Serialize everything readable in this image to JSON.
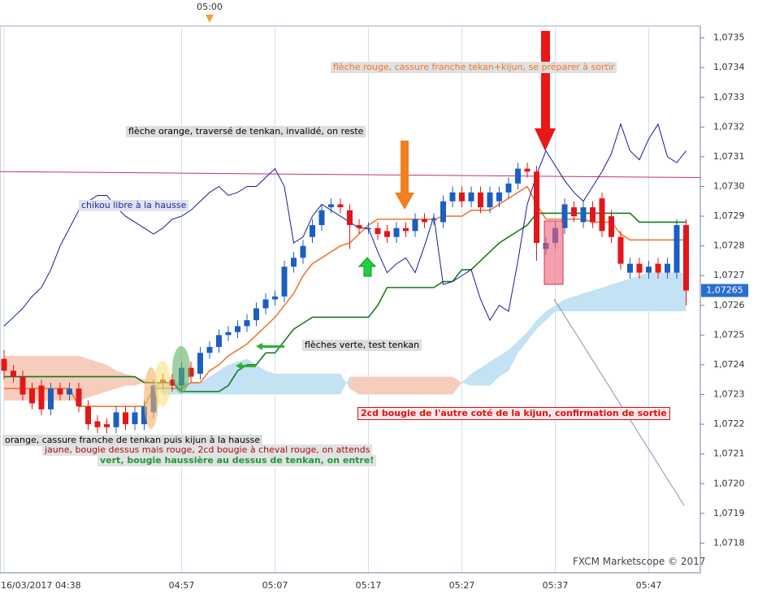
{
  "chart_data": {
    "type": "candlestick",
    "top_time_label": "05:00",
    "categories": [
      "16/03/2017 04:38",
      null,
      null,
      null,
      null,
      null,
      null,
      null,
      null,
      null,
      null,
      null,
      null,
      null,
      null,
      null,
      null,
      null,
      null,
      "04:57",
      null,
      null,
      null,
      null,
      null,
      null,
      null,
      null,
      null,
      "05:07",
      null,
      null,
      null,
      null,
      null,
      null,
      null,
      null,
      null,
      "05:17",
      null,
      null,
      null,
      null,
      null,
      null,
      null,
      null,
      null,
      "05:27",
      null,
      null,
      null,
      null,
      null,
      null,
      null,
      null,
      null,
      "05:37",
      null,
      null,
      null,
      null,
      null,
      null,
      null,
      null,
      null,
      "05:47",
      null,
      null,
      null,
      null
    ],
    "open": [
      1.07242,
      1.07238,
      1.07236,
      1.07232,
      1.07233,
      1.07225,
      1.07232,
      1.0723,
      1.07232,
      1.07226,
      1.07221,
      1.0722,
      1.07219,
      1.07224,
      1.0722,
      1.0722,
      1.07224,
      1.07235,
      1.07235,
      1.07233,
      1.07239,
      1.07237,
      1.07244,
      1.07246,
      1.0725,
      1.07251,
      1.07253,
      1.07255,
      1.07259,
      1.07262,
      1.07263,
      1.07273,
      1.07276,
      1.07283,
      1.07287,
      1.07293,
      1.07294,
      1.07292,
      1.07287,
      1.07286,
      1.07286,
      1.07285,
      1.07283,
      1.07286,
      1.07285,
      1.07289,
      1.07289,
      1.07288,
      1.07295,
      1.07298,
      1.07295,
      1.07298,
      1.07293,
      1.07295,
      1.07298,
      1.07301,
      1.07306,
      1.07305,
      1.07279,
      1.07281,
      1.07286,
      1.07293,
      1.07288,
      1.07293,
      1.07296,
      1.0729,
      1.07283,
      1.07271,
      1.07274,
      1.07271,
      1.07274,
      1.07271,
      1.07271,
      1.07287
    ],
    "high": [
      1.07245,
      1.0724,
      1.07238,
      1.07234,
      1.07235,
      1.07234,
      1.07234,
      1.07234,
      1.07234,
      1.07228,
      1.07223,
      1.07222,
      1.07226,
      1.07226,
      1.07226,
      1.07228,
      1.07235,
      1.07237,
      1.07237,
      1.07241,
      1.07241,
      1.07246,
      1.07248,
      1.07252,
      1.07253,
      1.07255,
      1.07257,
      1.07261,
      1.07264,
      1.07265,
      1.07275,
      1.07278,
      1.07282,
      1.07289,
      1.07294,
      1.07296,
      1.07296,
      1.07294,
      1.07289,
      1.07288,
      1.07288,
      1.07287,
      1.07288,
      1.07288,
      1.07291,
      1.07291,
      1.07291,
      1.07297,
      1.073,
      1.073,
      1.073,
      1.073,
      1.073,
      1.073,
      1.07303,
      1.07308,
      1.07308,
      1.07307,
      1.07283,
      1.07288,
      1.07296,
      1.07295,
      1.07295,
      1.07295,
      1.07298,
      1.07292,
      1.07285,
      1.07276,
      1.07276,
      1.07275,
      1.07276,
      1.07276,
      1.07289,
      1.07289
    ],
    "low": [
      1.07235,
      1.07234,
      1.07228,
      1.07225,
      1.07223,
      1.07223,
      1.07228,
      1.07228,
      1.07224,
      1.07218,
      1.07217,
      1.07217,
      1.07217,
      1.07218,
      1.07218,
      1.07218,
      1.07222,
      1.07232,
      1.07231,
      1.07231,
      1.07234,
      1.07235,
      1.07242,
      1.07244,
      1.07248,
      1.07249,
      1.07251,
      1.07253,
      1.07257,
      1.0726,
      1.07261,
      1.07271,
      1.07274,
      1.07281,
      1.07285,
      1.07291,
      1.07291,
      1.07279,
      1.07284,
      1.07284,
      1.07282,
      1.07281,
      1.07281,
      1.07283,
      1.07283,
      1.07286,
      1.07287,
      1.07286,
      1.07293,
      1.07293,
      1.07293,
      1.07291,
      1.07291,
      1.07293,
      1.07296,
      1.07299,
      1.07303,
      1.07275,
      1.07277,
      1.07279,
      1.07284,
      1.07288,
      1.07286,
      1.07286,
      1.07283,
      1.07281,
      1.07272,
      1.07269,
      1.07269,
      1.07269,
      1.07269,
      1.07269,
      1.07269,
      1.0726
    ],
    "close": [
      1.07238,
      1.07236,
      1.0723,
      1.07227,
      1.07225,
      1.07232,
      1.0723,
      1.07232,
      1.07226,
      1.0722,
      1.07219,
      1.07219,
      1.07224,
      1.0722,
      1.07224,
      1.07226,
      1.07233,
      1.07234,
      1.07233,
      1.07239,
      1.07236,
      1.07244,
      1.07246,
      1.0725,
      1.07251,
      1.07253,
      1.07255,
      1.07259,
      1.07262,
      1.07263,
      1.07273,
      1.07276,
      1.0728,
      1.07287,
      1.07292,
      1.07294,
      1.07293,
      1.07287,
      1.07286,
      1.07286,
      1.07284,
      1.07283,
      1.07286,
      1.07285,
      1.07289,
      1.07288,
      1.07289,
      1.07295,
      1.07298,
      1.07295,
      1.07298,
      1.07293,
      1.07298,
      1.07298,
      1.07301,
      1.07306,
      1.07305,
      1.07281,
      1.07281,
      1.07286,
      1.07294,
      1.0729,
      1.07293,
      1.07288,
      1.07285,
      1.07283,
      1.07274,
      1.07274,
      1.07271,
      1.07273,
      1.07271,
      1.07274,
      1.07287,
      1.07265
    ],
    "up_color": "#1b5fc1",
    "down_color": "#e3161c",
    "cloud": {
      "a": [
        1.07228,
        1.07228,
        1.07228,
        1.07228,
        1.07228,
        1.07228,
        1.07228,
        1.07228,
        1.07228,
        1.07229,
        1.0723,
        1.07231,
        1.07232,
        1.07233,
        1.07233,
        1.07234,
        1.07234,
        1.07234,
        1.07234,
        1.07234,
        1.07234,
        1.07234,
        1.07236,
        1.07238,
        1.0724,
        1.07241,
        1.07242,
        1.0724,
        1.07238,
        1.07237,
        1.07237,
        1.07237,
        1.07237,
        1.07237,
        1.07237,
        1.07237,
        1.07237,
        1.07232,
        1.0723,
        1.0723,
        1.0723,
        1.0723,
        1.0723,
        1.0723,
        1.0723,
        1.0723,
        1.0723,
        1.0723,
        1.0723,
        1.07234,
        1.07237,
        1.07239,
        1.07241,
        1.07243,
        1.07245,
        1.07248,
        1.07251,
        1.07255,
        1.07258,
        1.0726,
        1.07262,
        1.07263,
        1.07264,
        1.07265,
        1.07266,
        1.07267,
        1.07268,
        1.07269,
        1.0727,
        1.07271,
        1.07271,
        1.07271,
        1.07271,
        1.07271
      ],
      "b": [
        1.07243,
        1.07243,
        1.07243,
        1.07243,
        1.07243,
        1.07243,
        1.07243,
        1.07243,
        1.07243,
        1.07242,
        1.07241,
        1.0724,
        1.07238,
        1.07237,
        1.07236,
        1.07235,
        1.07234,
        1.0723,
        1.0723,
        1.0723,
        1.0723,
        1.0723,
        1.0723,
        1.0723,
        1.0723,
        1.0723,
        1.0723,
        1.0723,
        1.0723,
        1.0723,
        1.0723,
        1.0723,
        1.0723,
        1.0723,
        1.0723,
        1.0723,
        1.0723,
        1.07236,
        1.07236,
        1.07236,
        1.07236,
        1.07236,
        1.07236,
        1.07236,
        1.07236,
        1.07236,
        1.07236,
        1.07236,
        1.07236,
        1.07234,
        1.07233,
        1.07233,
        1.07233,
        1.07236,
        1.07238,
        1.07244,
        1.07248,
        1.07252,
        1.07255,
        1.07258,
        1.07258,
        1.07258,
        1.07258,
        1.07258,
        1.07258,
        1.07258,
        1.07258,
        1.07258,
        1.07258,
        1.07258,
        1.07258,
        1.07258,
        1.07258,
        1.07258
      ],
      "up_color": "#c3e2f3",
      "down_color": "#f6cdbd"
    },
    "lines": [
      {
        "color": "#f07830",
        "values": [
          1.07232,
          1.07232,
          1.07232,
          1.07232,
          1.07232,
          1.07232,
          1.07232,
          1.07232,
          1.07226,
          1.07226,
          1.07226,
          1.07226,
          1.07226,
          1.07226,
          1.07226,
          1.07226,
          1.07232,
          1.07232,
          1.07232,
          1.07232,
          1.07234,
          1.07234,
          1.07238,
          1.0724,
          1.07243,
          1.07245,
          1.07247,
          1.0725,
          1.07253,
          1.07256,
          1.0726,
          1.07264,
          1.0727,
          1.07274,
          1.07276,
          1.07278,
          1.0728,
          1.07281,
          1.07284,
          1.07287,
          1.07289,
          1.07289,
          1.07289,
          1.07289,
          1.07289,
          1.07289,
          1.07289,
          1.0729,
          1.0729,
          1.0729,
          1.07292,
          1.07292,
          1.07292,
          1.07294,
          1.07296,
          1.07298,
          1.073,
          1.07294,
          1.07289,
          1.07289,
          1.07289,
          1.07289,
          1.07289,
          1.07288,
          1.07288,
          1.07288,
          1.07284,
          1.07282,
          1.07282,
          1.07282,
          1.07282,
          1.07282,
          1.07282,
          1.07282
        ]
      },
      {
        "color": "#1a7a1a",
        "values": [
          1.07236,
          1.07236,
          1.07236,
          1.07236,
          1.07236,
          1.07236,
          1.07236,
          1.07236,
          1.07236,
          1.07236,
          1.07236,
          1.07236,
          1.07236,
          1.07236,
          1.07236,
          1.07234,
          1.07234,
          1.07234,
          1.07234,
          1.07231,
          1.07231,
          1.07231,
          1.07231,
          1.07231,
          1.07233,
          1.07238,
          1.0724,
          1.0724,
          1.07244,
          1.07244,
          1.07248,
          1.07252,
          1.07254,
          1.07256,
          1.07256,
          1.07256,
          1.07256,
          1.07256,
          1.07256,
          1.07256,
          1.0726,
          1.07266,
          1.07266,
          1.07266,
          1.07266,
          1.07266,
          1.07266,
          1.07268,
          1.07268,
          1.07272,
          1.07272,
          1.07275,
          1.07278,
          1.07281,
          1.07283,
          1.07285,
          1.07287,
          1.07291,
          1.07291,
          1.07291,
          1.07291,
          1.07291,
          1.07291,
          1.07291,
          1.07291,
          1.07291,
          1.07291,
          1.07291,
          1.07288,
          1.07288,
          1.07288,
          1.07288,
          1.07288,
          1.07288
        ]
      },
      {
        "color": "#1a1a9a",
        "values": [
          1.07253,
          1.07256,
          1.07259,
          1.07263,
          1.07266,
          1.07272,
          1.0728,
          1.07286,
          1.07292,
          1.07295,
          1.07297,
          1.07297,
          1.07293,
          1.0729,
          1.07288,
          1.07286,
          1.07284,
          1.07286,
          1.07289,
          1.0729,
          1.07292,
          1.07295,
          1.07298,
          1.073,
          1.07297,
          1.07298,
          1.073,
          1.073,
          1.07303,
          1.07306,
          1.073,
          1.07281,
          1.07283,
          1.0729,
          1.07294,
          1.07292,
          1.0729,
          1.07288,
          1.07286,
          1.07286,
          1.07278,
          1.07271,
          1.07274,
          1.07276,
          1.07271,
          1.0728,
          1.0729,
          1.07267,
          1.07268,
          1.0727,
          1.07272,
          1.07262,
          1.07255,
          1.0726,
          1.07258,
          1.07275,
          1.07294,
          1.07304,
          1.07312,
          1.07307,
          1.07302,
          1.07298,
          1.07295,
          1.073,
          1.07305,
          1.07311,
          1.07321,
          1.07312,
          1.07309,
          1.07316,
          1.07321,
          1.0731,
          1.07308,
          1.07312
        ]
      }
    ],
    "level_line": {
      "color": "#c4307c",
      "values": [
        1.07305,
        1.07303
      ]
    },
    "last_price": {
      "value": 1.07265,
      "label": "1,07265"
    },
    "ylim": [
      1.0717,
      1.07354
    ],
    "yticks": [
      {
        "value": 1.0718,
        "label": "1,0718"
      },
      {
        "value": 1.0719,
        "label": "1,0719"
      },
      {
        "value": 1.072,
        "label": "1,0720"
      },
      {
        "value": 1.0721,
        "label": "1,0721"
      },
      {
        "value": 1.0722,
        "label": "1,0722"
      },
      {
        "value": 1.0723,
        "label": "1,0723"
      },
      {
        "value": 1.0724,
        "label": "1,0724"
      },
      {
        "value": 1.0725,
        "label": "1,0725"
      },
      {
        "value": 1.0726,
        "label": "1,0726"
      },
      {
        "value": 1.0727,
        "label": "1,0727"
      },
      {
        "value": 1.0728,
        "label": "1,0728"
      },
      {
        "value": 1.0729,
        "label": "1,0729"
      },
      {
        "value": 1.073,
        "label": "1,0730"
      },
      {
        "value": 1.0731,
        "label": "1,0731"
      },
      {
        "value": 1.0732,
        "label": "1,0732"
      },
      {
        "value": 1.0733,
        "label": "1,0733"
      },
      {
        "value": 1.0734,
        "label": "1,0734"
      },
      {
        "value": 1.0735,
        "label": "1,0735"
      }
    ],
    "grid": "x",
    "annotations": [
      "flèche rouge, cassure franche tekan+kijun, se préparer à sortir",
      "flèche orange, traversé de tenkan, invalidé, on reste",
      "chikou libre à la hausse",
      "flèches verte, test tenkan",
      "2cd bougie de l'autre coté de la kijun, confirmation de sortie",
      "orange, cassure franche de tenkan puis kijun à la hausse",
      "jaune, bougie dessus mais rouge, 2cd bougie à cheval rouge, on attends",
      "vert, bougie haussière au dessus de tenkan, on entre!"
    ],
    "watermark": "FXCM Marketscope © 2017"
  }
}
